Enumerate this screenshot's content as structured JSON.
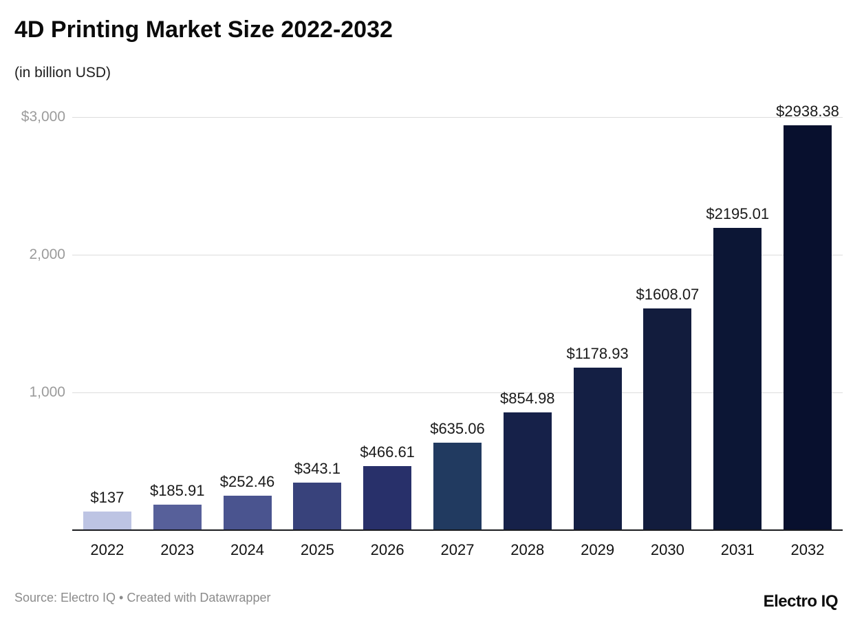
{
  "header": {
    "title": "4D Printing Market Size 2022-2032",
    "subtitle": "(in billion USD)"
  },
  "chart_data": {
    "type": "bar",
    "title": "4D Printing Market Size 2022-2032",
    "subtitle": "(in billion USD)",
    "categories": [
      "2022",
      "2023",
      "2024",
      "2025",
      "2026",
      "2027",
      "2028",
      "2029",
      "2030",
      "2031",
      "2032"
    ],
    "values": [
      137,
      185.91,
      252.46,
      343.1,
      466.61,
      635.06,
      854.98,
      1178.93,
      1608.07,
      2195.01,
      2938.38
    ],
    "value_labels": [
      "$137",
      "$185.91",
      "$252.46",
      "$343.1",
      "$466.61",
      "$635.06",
      "$854.98",
      "$1178.93",
      "$1608.07",
      "$2195.01",
      "$2938.38"
    ],
    "bar_colors": [
      "#bdc4e3",
      "#57609a",
      "#4a548f",
      "#38427b",
      "#28306a",
      "#213a60",
      "#162149",
      "#141f44",
      "#121c3d",
      "#0c1635",
      "#08102e"
    ],
    "ylim": [
      0,
      3000
    ],
    "yticks": [
      {
        "value": 3000,
        "label": "$3,000"
      },
      {
        "value": 2000,
        "label": "2,000"
      },
      {
        "value": 1000,
        "label": "1,000"
      }
    ],
    "grid": "horizontal",
    "legend": "none",
    "colors": {
      "gridline": "#dcdcdc",
      "axis_baseline": "#191a1e",
      "tick_text": "#9b9b9b",
      "label_text": "#1a1a1a"
    }
  },
  "footer": {
    "source": "Source: Electro IQ • Created with Datawrapper",
    "logo": "Electro IQ"
  }
}
